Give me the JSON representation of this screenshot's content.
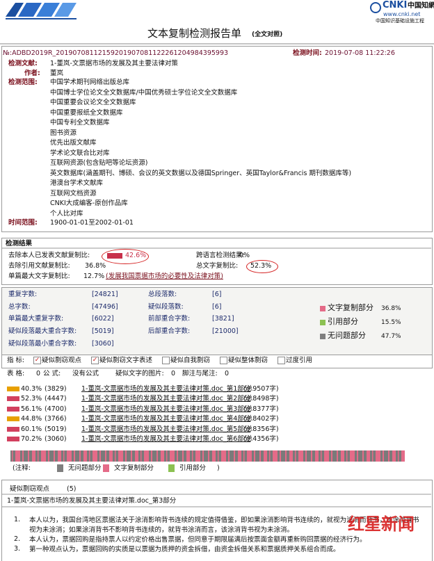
{
  "header": {
    "title": "文本复制检测报告单",
    "title_suffix": "(全文对照)",
    "cnki_logo": "CNKI",
    "cnki_name": "中国知網",
    "cnki_url": "www.cnki.net",
    "cnki_slogan": "中国知识基础设施工程"
  },
  "meta": {
    "number": "№:ADBD2019R_20190708112159201907081122261204984395993",
    "time_label": "检测时间:",
    "time": "2019-07-08 11:22:26",
    "doc_label": "检测文献:",
    "doc": "1-董岚-文票据市场的发展及其主要法律对策",
    "author_label": "作者:",
    "author": "董岚",
    "scope_label": "检测范围:",
    "scope": [
      "中国学术期刊网络出版总库",
      "中国博士学位论文全文数据库/中国优秀硕士学位论文全文数据库",
      "中国重要会议论文全文数据库",
      "中国重要报纸全文数据库",
      "中国专利全文数据库",
      "图书资源",
      "优先出版文献库",
      "学术论文联合比对库",
      "互联网资源(包含贴吧等论坛资源)",
      "英文数据库(涵盖期刊、博硕、会议的英文数据以及德国Springer、英国Taylor&Francis 期刊数据库等)",
      "港澳台学术文献库",
      "互联网文档资源",
      "CNKI大成编客-原创作品库",
      "个人比对库"
    ],
    "range_label": "时间范围:",
    "range": "1900-01-01至2002-01-01"
  },
  "results": {
    "title": "检测结果",
    "self_excluded_label": "去除本人已发表文献复制比:",
    "self_excluded": "42.6%",
    "cross_label": "跨语言检测结果:",
    "cross": "0%",
    "ref_excluded_label": "去除引用文献复制比:",
    "ref_excluded": "36.8%",
    "total_label": "总文字复制比:",
    "total": "52.3%",
    "max_single_label": "单篇最大文字复制比:",
    "max_single": "12.7%",
    "max_single_title": "(发展我国票据市场的必要性及法律对策)"
  },
  "stats": {
    "left": [
      {
        "label": "重复字数:",
        "value": "[24821]"
      },
      {
        "label": "总字数:",
        "value": "[47496]"
      },
      {
        "label": "单篇最大重复字数:",
        "value": "[6022]"
      },
      {
        "label": "疑似段落最大重合字数:",
        "value": "[5019]"
      },
      {
        "label": "疑似段落最小重合字数:",
        "value": "[3060]"
      }
    ],
    "right": [
      {
        "label": "总段落数:",
        "value": "[6]"
      },
      {
        "label": "疑似段落数:",
        "value": "[6]"
      },
      {
        "label": "前部重合字数:",
        "value": "[3821]"
      },
      {
        "label": "后部重合字数:",
        "value": "[21000]"
      }
    ]
  },
  "pie": {
    "series": [
      {
        "name": "文字复制部分",
        "value": 36.8,
        "value_label": "36.8%",
        "color": "#e46b88"
      },
      {
        "name": "引用部分",
        "value": 15.5,
        "value_label": "15.5%",
        "color": "#8cc152"
      },
      {
        "name": "无问题部分",
        "value": 47.7,
        "value_label": "47.7%",
        "color": "#7f7f7f"
      }
    ]
  },
  "indicators": {
    "label": "指 标:",
    "items": [
      {
        "label": "疑似剽窃观点",
        "checked": true
      },
      {
        "label": "疑似剽窃文字表述",
        "checked": true
      },
      {
        "label": "疑似自我剽窃",
        "checked": false
      },
      {
        "label": "疑似整体剽窃",
        "checked": false
      },
      {
        "label": "过度引用",
        "checked": false
      }
    ]
  },
  "counts": [
    {
      "label": "表 格:",
      "value": "0"
    },
    {
      "label": "公 式:",
      "value": "没有公式"
    },
    {
      "label": "疑似文字的图片:",
      "value": "0"
    },
    {
      "label": "脚注与尾注:",
      "value": "0"
    }
  ],
  "sections": [
    {
      "percent": "40.3%",
      "chars": "(3829)",
      "title": "1-董岚-文票据市场的发展及其主要法律对策.doc_第1部分",
      "total": "(总9507字)",
      "color": "#e8a000"
    },
    {
      "percent": "52.3%",
      "chars": "(4447)",
      "title": "1-董岚-文票据市场的发展及其主要法律对策.doc_第2部分",
      "total": "(总8498字)",
      "color": "#d2405e"
    },
    {
      "percent": "56.1%",
      "chars": "(4700)",
      "title": "1-董岚-文票据市场的发展及其主要法律对策.doc_第3部分",
      "total": "(总8377字)",
      "color": "#d2405e"
    },
    {
      "percent": "44.8%",
      "chars": "(3766)",
      "title": "1-董岚-文票据市场的发展及其主要法律对策.doc_第4部分",
      "total": "(总8402字)",
      "color": "#e8a000"
    },
    {
      "percent": "60.1%",
      "chars": "(5019)",
      "title": "1-董岚-文票据市场的发展及其主要法律对策.doc_第5部分",
      "total": "(总8356字)",
      "color": "#d2405e"
    },
    {
      "percent": "70.2%",
      "chars": "(3060)",
      "title": "1-董岚-文票据市场的发展及其主要法律对策.doc_第6部分",
      "total": "(总4356字)",
      "color": "#d2405e"
    }
  ],
  "legend": {
    "label": "(注释:",
    "items": [
      {
        "name": "无问题部分",
        "color": "#7f7f7f"
      },
      {
        "name": "文字复制部分",
        "color": "#e46b88"
      },
      {
        "name": "引用部分",
        "color": "#8cc152"
      }
    ],
    "end": ")"
  },
  "points": {
    "title": "疑似剽窃观点",
    "count": "(5)",
    "section": "1-董岚-文票据市场的发展及其主要法律对策.doc_第3部分",
    "items": [
      {
        "num": "1.",
        "text": "本人以为，我国台湾地区票据法关于涂消影响背书连续的规定值得借鉴，即如果涂消影响背书连续的，就视为涂消而背书，该涂消背书视为未涂消；如果涂消背书不影响背书连续的，就背书涂消而言，该涂消背书视为未涂消。"
      },
      {
        "num": "2.",
        "text": "本人认为，票据回购是指持票人以约定价格出售票据，但同意于期限届满后按票面金额再重新购回票据的经济行为。"
      },
      {
        "num": "3.",
        "text": "第一种观点认为，票据回购的实质是以票据为质押的资金拆借，由资金拆借关系和票据质押关系组合而成。"
      }
    ]
  },
  "watermark": "红星新闻"
}
